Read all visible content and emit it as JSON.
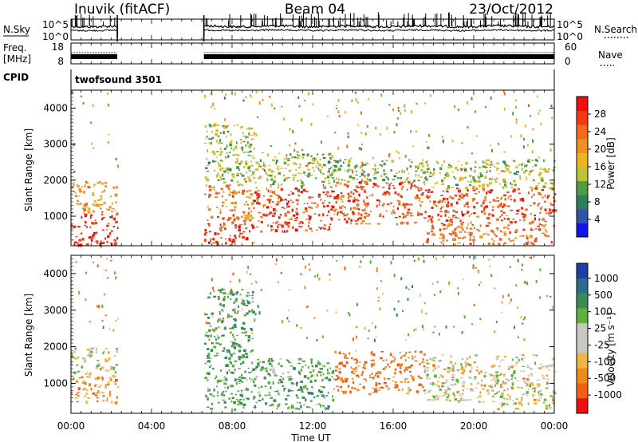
{
  "header": {
    "station": "Inuvik (fitACF)",
    "beam": "Beam 04",
    "date": "23/Oct/2012"
  },
  "side_labels": {
    "nsky": "N.Sky",
    "nsearch": "N.Search",
    "freq_line1": "Freq.",
    "freq_line2": "[MHz]",
    "nave": "Nave",
    "cpid": "CPID",
    "cpid_value": "twofsound 3501"
  },
  "time_axis": {
    "label": "Time UT",
    "ticks": [
      "00:00",
      "04:00",
      "08:00",
      "12:00",
      "16:00",
      "20:00",
      "00:00"
    ],
    "tick_hours": [
      0,
      4,
      8,
      12,
      16,
      20,
      24
    ],
    "data_gap_hours": [
      2.3,
      6.6
    ]
  },
  "noise_axis": {
    "left_ticks": [
      "10^5",
      "10^0"
    ],
    "right_ticks": [
      "10^5",
      "10^0"
    ]
  },
  "freq_axis": {
    "left_ticks": [
      "18",
      "8"
    ],
    "right_ticks": [
      "60",
      "0"
    ]
  },
  "range_axis": {
    "label": "Slant Range [km]",
    "ticks": [
      "1000",
      "2000",
      "3000",
      "4000"
    ],
    "tick_values": [
      1000,
      2000,
      3000,
      4000
    ],
    "range": [
      180,
      4500
    ]
  },
  "colorbars": {
    "power": {
      "label": "Power [dB]",
      "ticks": [
        "4",
        "8",
        "12",
        "16",
        "20",
        "24",
        "28"
      ],
      "colors": [
        "#1414e6",
        "#2e55a8",
        "#2f7f5e",
        "#4f9c44",
        "#bcc23a",
        "#eab81d",
        "#f0901e",
        "#f26a1a",
        "#f43a12",
        "#ee0e0e"
      ]
    },
    "velocity": {
      "label": "Velocity [m s⁻¹]",
      "ticks": [
        "1000",
        "500",
        "100",
        "25",
        "-25",
        "-100",
        "-500",
        "-1000"
      ],
      "colors": [
        "#1c3fa8",
        "#2c6a8e",
        "#3a8a5a",
        "#5fb13a",
        "#c8c8c0",
        "#c8c8c0",
        "#f2b640",
        "#f28a1a",
        "#f06010",
        "#ee1010"
      ]
    }
  },
  "chart_data": [
    {
      "type": "line",
      "title": "N.Sky / N.Search",
      "x": [
        0,
        2.3,
        6.6,
        12,
        18,
        24
      ],
      "series": [
        {
          "name": "N.Sky",
          "values": [
            3.1,
            3.0,
            2.9,
            2.9,
            3.0,
            3.0
          ]
        },
        {
          "name": "N.Search",
          "values": [
            2.6,
            2.5,
            2.5,
            2.5,
            2.6,
            2.6
          ]
        }
      ],
      "xlim": [
        0,
        24
      ]
    },
    {
      "type": "line",
      "title": "Freq. [MHz]",
      "x": [
        0,
        2.3,
        6.6,
        24
      ],
      "series": [
        {
          "name": "Freq.",
          "values": [
            10.5,
            10.5,
            10.5,
            10.5
          ]
        }
      ],
      "xlim": [
        0,
        24
      ],
      "ylim": [
        8,
        18
      ]
    },
    {
      "type": "heatmap",
      "title": "Power [dB]",
      "xlabel": "Time UT",
      "ylabel": "Slant Range [km]",
      "xlim": [
        0,
        24
      ],
      "ylim": [
        180,
        4500
      ],
      "colorbar_ticks": [
        4,
        8,
        12,
        16,
        20,
        24,
        28
      ],
      "bands": [
        {
          "t0": 0.0,
          "t1": 2.3,
          "r0": 200,
          "r1": 1100,
          "value": 28
        },
        {
          "t0": 0.0,
          "t1": 2.3,
          "r0": 1100,
          "r1": 2000,
          "value": 20
        },
        {
          "t0": 6.6,
          "t1": 9.0,
          "r0": 220,
          "r1": 900,
          "value": 28
        },
        {
          "t0": 6.6,
          "t1": 9.0,
          "r0": 900,
          "r1": 1900,
          "value": 22
        },
        {
          "t0": 6.6,
          "t1": 9.0,
          "r0": 1900,
          "r1": 3600,
          "value": 14
        },
        {
          "t0": 9.0,
          "t1": 13.0,
          "r0": 600,
          "r1": 1800,
          "value": 27
        },
        {
          "t0": 9.0,
          "t1": 13.0,
          "r0": 1800,
          "r1": 2800,
          "value": 14
        },
        {
          "t0": 13.0,
          "t1": 17.5,
          "r0": 800,
          "r1": 2000,
          "value": 26
        },
        {
          "t0": 13.0,
          "t1": 17.5,
          "r0": 2000,
          "r1": 2600,
          "value": 12
        },
        {
          "t0": 17.5,
          "t1": 24.0,
          "r0": 250,
          "r1": 900,
          "value": 24
        },
        {
          "t0": 17.5,
          "t1": 24.0,
          "r0": 900,
          "r1": 1800,
          "value": 26
        },
        {
          "t0": 17.5,
          "t1": 24.0,
          "r0": 1800,
          "r1": 2600,
          "value": 14
        }
      ]
    },
    {
      "type": "heatmap",
      "title": "Velocity [m s⁻¹]",
      "xlabel": "Time UT",
      "ylabel": "Slant Range [km]",
      "xlim": [
        0,
        24
      ],
      "ylim": [
        180,
        4500
      ],
      "colorbar_ticks": [
        1000,
        500,
        100,
        25,
        -25,
        -100,
        -500,
        -1000
      ],
      "bands": [
        {
          "t0": 0.0,
          "t1": 2.3,
          "r0": 500,
          "r1": 1300,
          "value": -200
        },
        {
          "t0": 0.0,
          "t1": 2.3,
          "r0": 1300,
          "r1": 2000,
          "value": 50
        },
        {
          "t0": 6.6,
          "t1": 9.0,
          "r0": 300,
          "r1": 1500,
          "value": 250
        },
        {
          "t0": 6.6,
          "t1": 9.0,
          "r0": 1500,
          "r1": 3600,
          "value": 300
        },
        {
          "t0": 9.0,
          "t1": 13.0,
          "r0": 300,
          "r1": 1700,
          "value": 250
        },
        {
          "t0": 13.0,
          "t1": 17.5,
          "r0": 700,
          "r1": 1900,
          "value": -300
        },
        {
          "t0": 17.5,
          "t1": 21.0,
          "r0": 500,
          "r1": 1800,
          "value": 0
        },
        {
          "t0": 21.0,
          "t1": 24.0,
          "r0": 300,
          "r1": 1800,
          "value": 20
        }
      ]
    }
  ]
}
